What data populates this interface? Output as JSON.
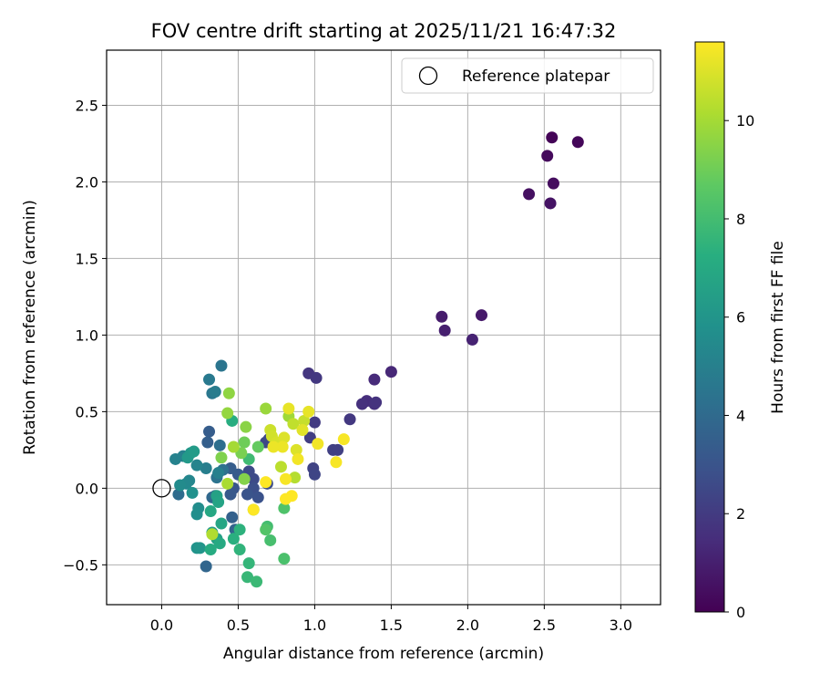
{
  "chart_data": {
    "type": "scatter",
    "title": "FOV centre drift starting at 2025/11/21 16:47:32",
    "xlabel": "Angular distance from reference (arcmin)",
    "ylabel": "Rotation from reference (arcmin)",
    "xlim": [
      -0.36,
      3.26
    ],
    "ylim": [
      -0.76,
      2.86
    ],
    "xticks": [
      0.0,
      0.5,
      1.0,
      1.5,
      2.0,
      2.5,
      3.0
    ],
    "xtick_labels": [
      "0.0",
      "0.5",
      "1.0",
      "1.5",
      "2.0",
      "2.5",
      "3.0"
    ],
    "yticks": [
      -0.5,
      0.0,
      0.5,
      1.0,
      1.5,
      2.0,
      2.5
    ],
    "ytick_labels": [
      "−0.5",
      "0.0",
      "0.5",
      "1.0",
      "1.5",
      "2.0",
      "2.5"
    ],
    "grid": true,
    "legend": {
      "position": "top-right",
      "entries": [
        "Reference platepar"
      ]
    },
    "reference_point": {
      "x": 0.0,
      "y": 0.0,
      "label": "Reference platepar"
    },
    "colorbar": {
      "label": "Hours from first FF file",
      "min": 0,
      "max": 11.6,
      "ticks": [
        0,
        2,
        4,
        6,
        8,
        10
      ],
      "tick_labels": [
        "0",
        "2",
        "4",
        "6",
        "8",
        "10"
      ],
      "colormap": "viridis"
    },
    "points": [
      {
        "x": 2.55,
        "y": 2.29,
        "h": 0.1
      },
      {
        "x": 2.72,
        "y": 2.26,
        "h": 0.2
      },
      {
        "x": 2.52,
        "y": 2.17,
        "h": 0.3
      },
      {
        "x": 2.56,
        "y": 1.99,
        "h": 0.4
      },
      {
        "x": 2.4,
        "y": 1.92,
        "h": 0.5
      },
      {
        "x": 2.54,
        "y": 1.86,
        "h": 0.6
      },
      {
        "x": 2.09,
        "y": 1.13,
        "h": 0.8
      },
      {
        "x": 1.83,
        "y": 1.12,
        "h": 0.9
      },
      {
        "x": 1.85,
        "y": 1.03,
        "h": 1.0
      },
      {
        "x": 2.03,
        "y": 0.97,
        "h": 1.1
      },
      {
        "x": 1.5,
        "y": 0.76,
        "h": 1.3
      },
      {
        "x": 1.39,
        "y": 0.71,
        "h": 1.4
      },
      {
        "x": 1.34,
        "y": 0.57,
        "h": 1.5
      },
      {
        "x": 1.39,
        "y": 0.55,
        "h": 1.6
      },
      {
        "x": 1.31,
        "y": 0.55,
        "h": 1.6
      },
      {
        "x": 1.4,
        "y": 0.56,
        "h": 1.7
      },
      {
        "x": 0.96,
        "y": 0.75,
        "h": 1.8
      },
      {
        "x": 1.01,
        "y": 0.72,
        "h": 1.9
      },
      {
        "x": 1.23,
        "y": 0.45,
        "h": 1.9
      },
      {
        "x": 1.0,
        "y": 0.43,
        "h": 2.0
      },
      {
        "x": 0.97,
        "y": 0.33,
        "h": 2.1
      },
      {
        "x": 1.12,
        "y": 0.25,
        "h": 2.2
      },
      {
        "x": 1.15,
        "y": 0.25,
        "h": 2.2
      },
      {
        "x": 0.99,
        "y": 0.13,
        "h": 2.3
      },
      {
        "x": 1.0,
        "y": 0.09,
        "h": 2.4
      },
      {
        "x": 0.7,
        "y": 0.32,
        "h": 2.4
      },
      {
        "x": 0.68,
        "y": 0.3,
        "h": 2.5
      },
      {
        "x": 0.57,
        "y": 0.11,
        "h": 2.6
      },
      {
        "x": 0.6,
        "y": 0.06,
        "h": 2.6
      },
      {
        "x": 0.69,
        "y": 0.03,
        "h": 2.7
      },
      {
        "x": 0.6,
        "y": 0.0,
        "h": 2.8
      },
      {
        "x": 0.63,
        "y": -0.06,
        "h": 2.9
      },
      {
        "x": 0.56,
        "y": -0.04,
        "h": 3.0
      },
      {
        "x": 0.47,
        "y": 0.0,
        "h": 3.1
      },
      {
        "x": 0.45,
        "y": -0.04,
        "h": 3.2
      },
      {
        "x": 0.5,
        "y": 0.09,
        "h": 3.3
      },
      {
        "x": 0.45,
        "y": 0.13,
        "h": 3.4
      },
      {
        "x": 0.31,
        "y": 0.37,
        "h": 3.4
      },
      {
        "x": 0.3,
        "y": 0.3,
        "h": 3.5
      },
      {
        "x": 0.46,
        "y": -0.19,
        "h": 3.6
      },
      {
        "x": 0.48,
        "y": -0.27,
        "h": 3.7
      },
      {
        "x": 0.29,
        "y": -0.51,
        "h": 3.8
      },
      {
        "x": 0.33,
        "y": -0.06,
        "h": 3.9
      },
      {
        "x": 0.35,
        "y": -0.05,
        "h": 4.0
      },
      {
        "x": 0.11,
        "y": -0.04,
        "h": 4.1
      },
      {
        "x": 0.38,
        "y": 0.28,
        "h": 4.2
      },
      {
        "x": 0.4,
        "y": 0.12,
        "h": 4.3
      },
      {
        "x": 0.36,
        "y": 0.07,
        "h": 4.4
      },
      {
        "x": 0.39,
        "y": 0.8,
        "h": 4.5
      },
      {
        "x": 0.33,
        "y": 0.62,
        "h": 4.6
      },
      {
        "x": 0.31,
        "y": 0.71,
        "h": 4.7
      },
      {
        "x": 0.35,
        "y": 0.63,
        "h": 4.8
      },
      {
        "x": 0.29,
        "y": 0.13,
        "h": 4.9
      },
      {
        "x": 0.37,
        "y": 0.1,
        "h": 5.0
      },
      {
        "x": 0.14,
        "y": 0.21,
        "h": 5.0
      },
      {
        "x": 0.09,
        "y": 0.19,
        "h": 5.1
      },
      {
        "x": 0.23,
        "y": 0.15,
        "h": 5.2
      },
      {
        "x": 0.18,
        "y": 0.05,
        "h": 5.3
      },
      {
        "x": 0.16,
        "y": 0.03,
        "h": 5.4
      },
      {
        "x": 0.12,
        "y": 0.02,
        "h": 5.5
      },
      {
        "x": 0.24,
        "y": -0.13,
        "h": 5.6
      },
      {
        "x": 0.23,
        "y": -0.17,
        "h": 5.7
      },
      {
        "x": 0.2,
        "y": -0.03,
        "h": 5.8
      },
      {
        "x": 0.23,
        "y": -0.39,
        "h": 5.9
      },
      {
        "x": 0.25,
        "y": -0.39,
        "h": 6.0
      },
      {
        "x": 0.19,
        "y": 0.23,
        "h": 6.1
      },
      {
        "x": 0.17,
        "y": 0.2,
        "h": 6.2
      },
      {
        "x": 0.21,
        "y": 0.24,
        "h": 6.3
      },
      {
        "x": 0.33,
        "y": -0.29,
        "h": 6.4
      },
      {
        "x": 0.36,
        "y": -0.33,
        "h": 6.5
      },
      {
        "x": 0.36,
        "y": -0.05,
        "h": 6.6
      },
      {
        "x": 0.37,
        "y": -0.09,
        "h": 6.7
      },
      {
        "x": 0.39,
        "y": -0.23,
        "h": 6.8
      },
      {
        "x": 0.32,
        "y": -0.15,
        "h": 6.9
      },
      {
        "x": 0.38,
        "y": -0.36,
        "h": 7.0
      },
      {
        "x": 0.32,
        "y": -0.4,
        "h": 7.1
      },
      {
        "x": 0.46,
        "y": 0.44,
        "h": 7.2
      },
      {
        "x": 0.47,
        "y": -0.33,
        "h": 7.3
      },
      {
        "x": 0.51,
        "y": -0.27,
        "h": 7.4
      },
      {
        "x": 0.51,
        "y": -0.4,
        "h": 7.5
      },
      {
        "x": 0.57,
        "y": -0.49,
        "h": 7.6
      },
      {
        "x": 0.56,
        "y": -0.58,
        "h": 7.7
      },
      {
        "x": 0.62,
        "y": -0.61,
        "h": 7.8
      },
      {
        "x": 0.57,
        "y": 0.19,
        "h": 7.9
      },
      {
        "x": 0.69,
        "y": -0.25,
        "h": 8.0
      },
      {
        "x": 0.71,
        "y": -0.34,
        "h": 8.1
      },
      {
        "x": 0.8,
        "y": -0.46,
        "h": 8.2
      },
      {
        "x": 0.8,
        "y": -0.13,
        "h": 8.3
      },
      {
        "x": 0.68,
        "y": -0.27,
        "h": 8.4
      },
      {
        "x": 0.6,
        "y": -0.14,
        "h": 8.6
      },
      {
        "x": 0.63,
        "y": 0.27,
        "h": 8.8
      },
      {
        "x": 0.54,
        "y": 0.3,
        "h": 9.0
      },
      {
        "x": 0.52,
        "y": 0.23,
        "h": 9.2
      },
      {
        "x": 0.39,
        "y": 0.2,
        "h": 9.3
      },
      {
        "x": 0.54,
        "y": 0.06,
        "h": 9.4
      },
      {
        "x": 0.55,
        "y": 0.4,
        "h": 9.5
      },
      {
        "x": 0.44,
        "y": 0.62,
        "h": 9.6
      },
      {
        "x": 0.43,
        "y": 0.49,
        "h": 9.7
      },
      {
        "x": 0.68,
        "y": 0.52,
        "h": 9.8
      },
      {
        "x": 0.83,
        "y": 0.47,
        "h": 9.9
      },
      {
        "x": 0.47,
        "y": 0.27,
        "h": 10.0
      },
      {
        "x": 0.43,
        "y": 0.03,
        "h": 10.1
      },
      {
        "x": 0.33,
        "y": -0.3,
        "h": 10.2
      },
      {
        "x": 0.87,
        "y": 0.07,
        "h": 10.3
      },
      {
        "x": 0.78,
        "y": 0.14,
        "h": 10.4
      },
      {
        "x": 0.86,
        "y": 0.42,
        "h": 10.5
      },
      {
        "x": 0.93,
        "y": 0.44,
        "h": 10.6
      },
      {
        "x": 0.71,
        "y": 0.38,
        "h": 10.7
      },
      {
        "x": 0.72,
        "y": 0.34,
        "h": 10.8
      },
      {
        "x": 0.75,
        "y": 0.3,
        "h": 10.9
      },
      {
        "x": 0.8,
        "y": 0.33,
        "h": 11.0
      },
      {
        "x": 0.88,
        "y": 0.25,
        "h": 11.0
      },
      {
        "x": 0.92,
        "y": 0.38,
        "h": 11.1
      },
      {
        "x": 0.96,
        "y": 0.5,
        "h": 11.2
      },
      {
        "x": 0.83,
        "y": 0.52,
        "h": 11.2
      },
      {
        "x": 0.79,
        "y": 0.27,
        "h": 11.3
      },
      {
        "x": 0.73,
        "y": 0.27,
        "h": 11.3
      },
      {
        "x": 0.89,
        "y": 0.19,
        "h": 11.4
      },
      {
        "x": 1.02,
        "y": 0.29,
        "h": 11.4
      },
      {
        "x": 1.19,
        "y": 0.32,
        "h": 11.5
      },
      {
        "x": 1.14,
        "y": 0.17,
        "h": 11.5
      },
      {
        "x": 0.81,
        "y": 0.06,
        "h": 11.5
      },
      {
        "x": 0.85,
        "y": -0.05,
        "h": 11.6
      },
      {
        "x": 0.81,
        "y": -0.07,
        "h": 11.6
      },
      {
        "x": 0.6,
        "y": -0.14,
        "h": 11.6
      },
      {
        "x": 0.68,
        "y": 0.04,
        "h": 11.6
      }
    ]
  }
}
